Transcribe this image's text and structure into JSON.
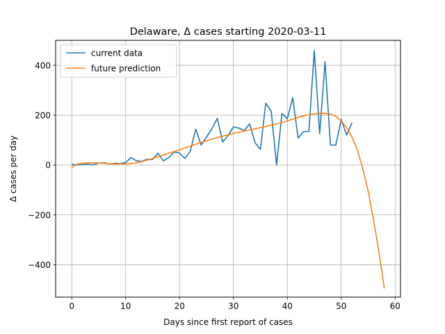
{
  "chart_data": {
    "type": "line",
    "title": "Delaware, Δ cases starting 2020-03-11",
    "xlabel": "Days since first report of cases",
    "ylabel": "Δ cases per day",
    "xlim": [
      -3,
      61
    ],
    "ylim": [
      -530,
      500
    ],
    "xticks": [
      0,
      10,
      20,
      30,
      40,
      50,
      60
    ],
    "yticks": [
      -400,
      -200,
      0,
      200,
      400
    ],
    "ytick_labels": [
      "−400",
      "−200",
      "0",
      "200",
      "400"
    ],
    "grid": true,
    "legend_position": "upper-left",
    "series": [
      {
        "name": "current data",
        "color": "#1f77b4",
        "x": [
          0,
          1,
          2,
          3,
          4,
          5,
          6,
          7,
          8,
          9,
          10,
          11,
          12,
          13,
          14,
          15,
          16,
          17,
          18,
          19,
          20,
          21,
          22,
          23,
          24,
          25,
          26,
          27,
          28,
          29,
          30,
          31,
          32,
          33,
          34,
          35,
          36,
          37,
          38,
          39,
          40,
          41,
          42,
          43,
          44,
          45,
          46,
          47,
          48,
          49,
          50,
          51,
          52
        ],
        "y": [
          3,
          0,
          2,
          3,
          1,
          8,
          9,
          4,
          7,
          5,
          10,
          30,
          17,
          15,
          23,
          22,
          48,
          17,
          30,
          52,
          48,
          26,
          56,
          144,
          80,
          112,
          145,
          187,
          92,
          118,
          153,
          148,
          138,
          165,
          90,
          62,
          248,
          216,
          0,
          207,
          185,
          270,
          108,
          134,
          134,
          459,
          125,
          414,
          80,
          80,
          183,
          120,
          170
        ]
      },
      {
        "name": "future prediction",
        "color": "#ff7f0e",
        "x": [
          0,
          1,
          2,
          3,
          4,
          5,
          6,
          7,
          8,
          9,
          10,
          11,
          12,
          13,
          14,
          15,
          16,
          17,
          18,
          19,
          20,
          21,
          22,
          23,
          24,
          25,
          26,
          27,
          28,
          29,
          30,
          31,
          32,
          33,
          34,
          35,
          36,
          37,
          38,
          39,
          40,
          41,
          42,
          43,
          44,
          45,
          46,
          47,
          48,
          49,
          50,
          51,
          52,
          53,
          54,
          55,
          56,
          57,
          58
        ],
        "y": [
          -8,
          3,
          7,
          9,
          9,
          8,
          7,
          5,
          4,
          4,
          4,
          6,
          9,
          14,
          20,
          26,
          33,
          40,
          47,
          54,
          61,
          68,
          76,
          83,
          91,
          97,
          104,
          110,
          116,
          121,
          127,
          131,
          136,
          141,
          145,
          150,
          155,
          160,
          165,
          170,
          177,
          184,
          191,
          197,
          202,
          205,
          208,
          207,
          204,
          195,
          177,
          150,
          112,
          60,
          -15,
          -105,
          -220,
          -350,
          -495
        ]
      }
    ]
  }
}
